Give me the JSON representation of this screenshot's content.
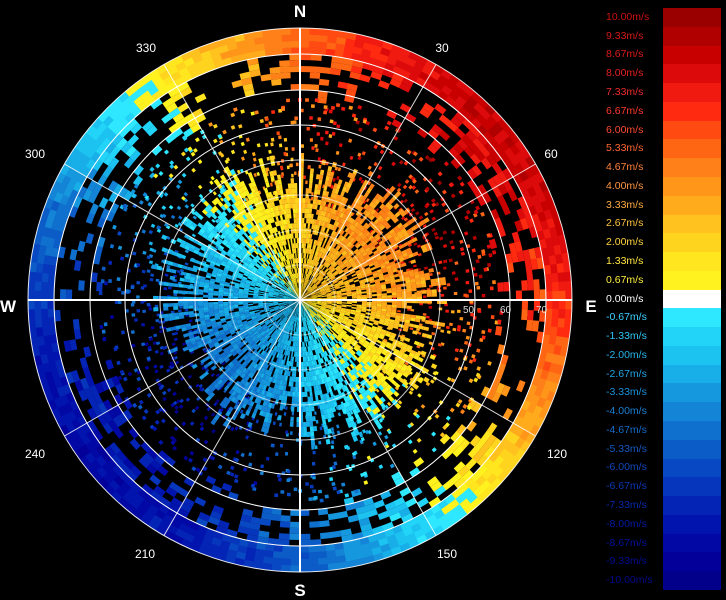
{
  "compass": {
    "north": "N",
    "east": "E",
    "south": "S",
    "west": "W"
  },
  "bearings": [
    "30",
    "60",
    "120",
    "150",
    "210",
    "240",
    "300",
    "330"
  ],
  "range_labels": [
    "50",
    "60",
    "70"
  ],
  "legend": {
    "unit": "m/s",
    "entries": [
      {
        "label": "10.00m/s",
        "color": "#9a0000",
        "text_color": "#d01010"
      },
      {
        "label": "9.33m/s",
        "color": "#b00000",
        "text_color": "#d81818"
      },
      {
        "label": "8.67m/s",
        "color": "#c80000",
        "text_color": "#e01a1a"
      },
      {
        "label": "8.00m/s",
        "color": "#dc0a0a",
        "text_color": "#e82020"
      },
      {
        "label": "7.33m/s",
        "color": "#f01a10",
        "text_color": "#f02a2a"
      },
      {
        "label": "6.67m/s",
        "color": "#ff2a10",
        "text_color": "#ff3a2a"
      },
      {
        "label": "6.00m/s",
        "color": "#ff4a12",
        "text_color": "#ff4a30"
      },
      {
        "label": "5.33m/s",
        "color": "#ff6614",
        "text_color": "#ff6633"
      },
      {
        "label": "4.67m/s",
        "color": "#ff8018",
        "text_color": "#ff8038"
      },
      {
        "label": "4.00m/s",
        "color": "#ff961a",
        "text_color": "#ff9640"
      },
      {
        "label": "3.33m/s",
        "color": "#ffab1c",
        "text_color": "#ffab40"
      },
      {
        "label": "2.67m/s",
        "color": "#ffc21e",
        "text_color": "#ffc240"
      },
      {
        "label": "2.00m/s",
        "color": "#ffd41e",
        "text_color": "#ffd440"
      },
      {
        "label": "1.33m/s",
        "color": "#ffe61e",
        "text_color": "#ffe640"
      },
      {
        "label": "0.67m/s",
        "color": "#fff21e",
        "text_color": "#fff040"
      },
      {
        "label": "0.00m/s",
        "color": "#ffffff",
        "text_color": "#ffffff"
      },
      {
        "label": "-0.67m/s",
        "color": "#2ee8ff",
        "text_color": "#3ad0ff"
      },
      {
        "label": "-1.33m/s",
        "color": "#22d4f8",
        "text_color": "#30c4f4"
      },
      {
        "label": "-2.00m/s",
        "color": "#1cc2f0",
        "text_color": "#28b4ea"
      },
      {
        "label": "-2.67m/s",
        "color": "#18aee8",
        "text_color": "#22a4e4"
      },
      {
        "label": "-3.33m/s",
        "color": "#1698de",
        "text_color": "#1c92dc"
      },
      {
        "label": "-4.00m/s",
        "color": "#1484d6",
        "text_color": "#1a80d4"
      },
      {
        "label": "-4.67m/s",
        "color": "#1070ce",
        "text_color": "#166ecc"
      },
      {
        "label": "-5.33m/s",
        "color": "#0c5cc8",
        "text_color": "#125ac4"
      },
      {
        "label": "-6.00m/s",
        "color": "#0848c2",
        "text_color": "#0e48bc"
      },
      {
        "label": "-6.67m/s",
        "color": "#0636bc",
        "text_color": "#0a38b4"
      },
      {
        "label": "-7.33m/s",
        "color": "#0424b6",
        "text_color": "#0628ac"
      },
      {
        "label": "-8.00m/s",
        "color": "#0214ae",
        "text_color": "#041aa4"
      },
      {
        "label": "-8.67m/s",
        "color": "#0208a4",
        "text_color": "#04129c"
      },
      {
        "label": "-9.33m/s",
        "color": "#020098",
        "text_color": "#040c94"
      },
      {
        "label": "-10.00m/s",
        "color": "#02008a",
        "text_color": "#04088a"
      }
    ]
  }
}
